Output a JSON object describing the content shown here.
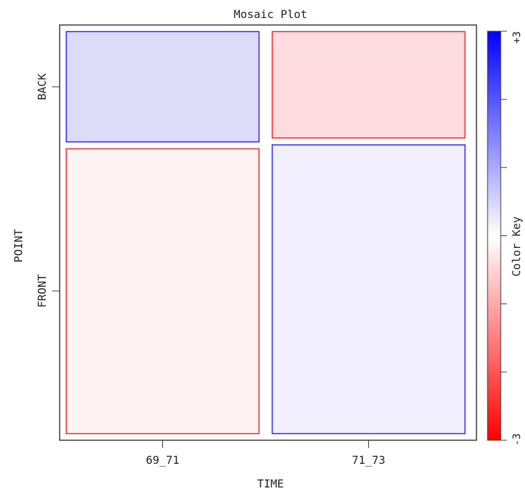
{
  "chart_data": {
    "type": "mosaic",
    "title": "Mosaic Plot",
    "xlabel": "TIME",
    "ylabel": "POINT",
    "x_categories": [
      "69_71",
      "71_73"
    ],
    "y_categories": [
      "BACK",
      "FRONT"
    ],
    "x_proportions": [
      0.5,
      0.5
    ],
    "cells": [
      {
        "x": "69_71",
        "y": "BACK",
        "proportion": 0.28,
        "residual": 0.9,
        "fill": "#dcdcf8",
        "stroke": "#2020ff"
      },
      {
        "x": "69_71",
        "y": "FRONT",
        "proportion": 0.72,
        "residual": -0.2,
        "fill": "#fff4f4",
        "stroke": "#ee2020"
      },
      {
        "x": "71_73",
        "y": "BACK",
        "proportion": 0.27,
        "residual": -0.9,
        "fill": "#ffdcdf",
        "stroke": "#ee2020"
      },
      {
        "x": "71_73",
        "y": "FRONT",
        "proportion": 0.73,
        "residual": 0.2,
        "fill": "#f2f0ff",
        "stroke": "#2020ff"
      }
    ],
    "color_key": {
      "label": "Color Key",
      "min_label": "-3",
      "max_label": "+3",
      "min": -3,
      "max": 3,
      "low_color": "#ff0000",
      "mid_color": "#ffffff",
      "high_color": "#0000ff"
    },
    "grid": false,
    "legend_position": "right"
  }
}
